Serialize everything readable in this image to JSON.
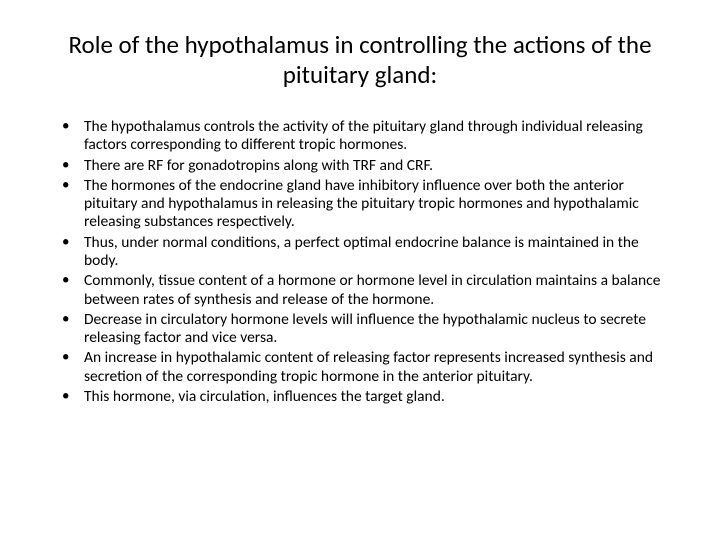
{
  "title": "Role of the hypothalamus in controlling the actions of the pituitary gland:",
  "title_fontsize": 25,
  "body_fontsize": 15.5,
  "text_color": "#000000",
  "background_color": "#ffffff",
  "bullets": [
    "The hypothalamus controls the activity of the pituitary gland through individual releasing factors corresponding to different tropic hormones.",
    "There are RF for gonadotropins along with TRF and CRF.",
    "The hormones of the endocrine gland have inhibitory influence over both the anterior pituitary and hypothalamus in releasing the pituitary tropic hormones and hypothalamic releasing substances respectively.",
    "Thus, under normal conditions, a perfect optimal endocrine balance is maintained in the body.",
    "Commonly, tissue content of a hormone or hormone level in circulation maintains a balance between rates of synthesis and release of the hormone.",
    "Decrease in circulatory hormone levels will influence the hypothalamic nucleus to secrete releasing factor and vice versa.",
    "An increase in hypothalamic content of releasing factor represents increased synthesis and secretion of the corresponding tropic hormone in the anterior pituitary.",
    "This hormone, via circulation, influences the target gland."
  ]
}
